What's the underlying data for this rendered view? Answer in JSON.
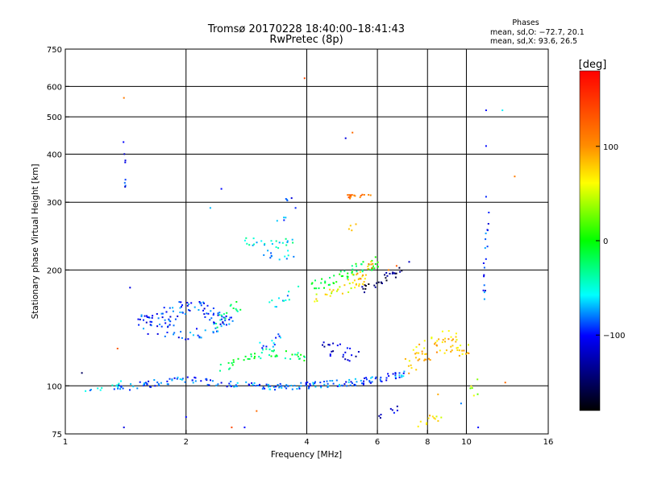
{
  "chart_data": {
    "type": "scatter",
    "title": "Tromsø 20170228 18:40:00–18:41:43",
    "subtitle": "RwPretec (8p)",
    "xlabel": "Frequency [MHz]",
    "ylabel": "Stationary phase Virtual Height [km]",
    "x_scale": "log",
    "y_scale": "log",
    "xlim": [
      1,
      16
    ],
    "ylim": [
      75,
      750
    ],
    "x_ticks": [
      1,
      2,
      4,
      6,
      8,
      10,
      16
    ],
    "x_tick_labels": [
      "1",
      "2",
      "4",
      "6",
      "8",
      "10",
      "16"
    ],
    "x_gridlines": [
      2,
      4,
      6,
      8,
      10
    ],
    "y_ticks": [
      75,
      100,
      200,
      300,
      400,
      500,
      600,
      750
    ],
    "y_tick_labels": [
      "75",
      "100",
      "200",
      "300",
      "400",
      "500",
      "600",
      "750"
    ],
    "y_gridlines": [
      100,
      200,
      300,
      400,
      500,
      600
    ],
    "info_heading": "Phases",
    "info_lines": [
      "mean, sd,O: −72.7, 20.1",
      "mean, sd,X:  93.6, 26.5"
    ],
    "colorbar": {
      "label": "[deg]",
      "range": [
        -180,
        180
      ],
      "ticks": [
        100,
        0,
        -100
      ],
      "tick_labels": [
        "100",
        "0",
        "−100"
      ],
      "colors": [
        "#ff0000",
        "#ff7f00",
        "#ffff00",
        "#00ff00",
        "#00ffff",
        "#0000ff",
        "#000000"
      ]
    },
    "traces": [
      {
        "f": [
          1.5,
          1.7,
          1.9,
          2.1,
          2.3,
          2.5
        ],
        "h": [
          145,
          150,
          157,
          162,
          155,
          148
        ],
        "phase": -95,
        "n": 16,
        "jitter": 0.05
      },
      {
        "f": [
          1.55,
          1.8,
          2.1,
          2.4,
          2.65
        ],
        "h": [
          142,
          140,
          137,
          140,
          150
        ],
        "phase": -90,
        "n": 12,
        "jitter": 0.045
      },
      {
        "f": [
          2.35,
          2.55,
          2.75
        ],
        "h": [
          145,
          155,
          162
        ],
        "phase": -30,
        "n": 8,
        "jitter": 0.04
      },
      {
        "f": [
          1.3,
          1.6,
          2.0,
          2.6,
          3.2,
          3.8,
          4.4,
          5.2,
          6.0,
          7.0
        ],
        "h": [
          98,
          101,
          104,
          101,
          99,
          100,
          101,
          102,
          104,
          107
        ],
        "phase": -85,
        "n": 22,
        "jitter": 0.02
      },
      {
        "f": [
          1.1,
          1.25,
          1.4
        ],
        "h": [
          95,
          98,
          100
        ],
        "phase": -60,
        "n": 6,
        "jitter": 0.03
      },
      {
        "f": [
          2.4,
          2.8,
          3.2,
          3.6,
          4.0
        ],
        "h": [
          110,
          118,
          122,
          120,
          118
        ],
        "phase": -20,
        "n": 12,
        "jitter": 0.025
      },
      {
        "f": [
          3.0,
          3.3,
          3.5
        ],
        "h": [
          125,
          130,
          135
        ],
        "phase": -80,
        "n": 6,
        "jitter": 0.03
      },
      {
        "f": [
          2.8,
          3.0,
          3.4,
          3.7
        ],
        "h": [
          240,
          235,
          232,
          242
        ],
        "phase": -50,
        "n": 8,
        "jitter": 0.025
      },
      {
        "f": [
          3.1,
          3.4,
          3.7
        ],
        "h": [
          222,
          218,
          220
        ],
        "phase": -70,
        "n": 6,
        "jitter": 0.025
      },
      {
        "f": [
          3.4,
          3.6
        ],
        "h": [
          268,
          270
        ],
        "phase": -85,
        "n": 4,
        "jitter": 0.02
      },
      {
        "f": [
          3.5,
          3.8
        ],
        "h": [
          302,
          305
        ],
        "phase": -90,
        "n": 4,
        "jitter": 0.02
      },
      {
        "f": [
          3.2,
          3.5,
          3.8
        ],
        "h": [
          160,
          168,
          178
        ],
        "phase": -60,
        "n": 6,
        "jitter": 0.035
      },
      {
        "f": [
          4.1,
          4.6,
          5.1,
          5.6,
          6.1
        ],
        "h": [
          180,
          190,
          198,
          205,
          210
        ],
        "phase": -10,
        "n": 14,
        "jitter": 0.035
      },
      {
        "f": [
          4.2,
          4.7,
          5.2,
          5.6
        ],
        "h": [
          168,
          175,
          182,
          190
        ],
        "phase": 60,
        "n": 10,
        "jitter": 0.03
      },
      {
        "f": [
          5.1,
          5.5,
          5.8
        ],
        "h": [
          185,
          195,
          205
        ],
        "phase": 90,
        "n": 10,
        "jitter": 0.04
      },
      {
        "f": [
          5.5,
          6.0,
          6.5,
          7.0
        ],
        "h": [
          175,
          185,
          195,
          200
        ],
        "phase": -150,
        "n": 10,
        "jitter": 0.03
      },
      {
        "f": [
          4.8,
          5.2,
          5.8
        ],
        "h": [
          308,
          309,
          310
        ],
        "phase": 120,
        "n": 8,
        "jitter": 0.015
      },
      {
        "f": [
          5.1,
          5.4
        ],
        "h": [
          250,
          270
        ],
        "phase": 95,
        "n": 4,
        "jitter": 0.04
      },
      {
        "f": [
          4.2,
          4.6,
          5.0,
          5.4
        ],
        "h": [
          130,
          125,
          120,
          118
        ],
        "phase": -120,
        "n": 8,
        "jitter": 0.05
      },
      {
        "f": [
          7.0,
          7.6,
          8.2,
          8.8,
          9.5,
          10.2
        ],
        "h": [
          110,
          120,
          125,
          130,
          128,
          120
        ],
        "phase": 80,
        "n": 14,
        "jitter": 0.07
      },
      {
        "f": [
          7.5,
          8.1,
          8.8
        ],
        "h": [
          80,
          82,
          84
        ],
        "phase": 70,
        "n": 6,
        "jitter": 0.03
      },
      {
        "f": [
          6.0,
          6.5,
          7.0
        ],
        "h": [
          82,
          85,
          88
        ],
        "phase": -110,
        "n": 4,
        "jitter": 0.03
      },
      {
        "f": [
          11.0,
          11.1,
          11.2,
          11.3
        ],
        "h": [
          160,
          190,
          230,
          280
        ],
        "phase": -95,
        "n": 6,
        "jitter": 0.06
      },
      {
        "f": [
          1.4,
          1.4,
          1.4
        ],
        "h": [
          340,
          380,
          450
        ],
        "phase": -100,
        "n": 4,
        "jitter": 0.04
      },
      {
        "f": [
          10.3,
          10.8
        ],
        "h": [
          95,
          100
        ],
        "phase": 40,
        "n": 6,
        "jitter": 0.06
      }
    ],
    "singles": [
      {
        "f": 1.4,
        "h": 560,
        "phase": 110
      },
      {
        "f": 3.95,
        "h": 630,
        "phase": 140
      },
      {
        "f": 5.2,
        "h": 455,
        "phase": 120
      },
      {
        "f": 5.0,
        "h": 440,
        "phase": -110
      },
      {
        "f": 11.2,
        "h": 520,
        "phase": -100
      },
      {
        "f": 12.3,
        "h": 520,
        "phase": -60
      },
      {
        "f": 11.2,
        "h": 420,
        "phase": -100
      },
      {
        "f": 11.2,
        "h": 310,
        "phase": -95
      },
      {
        "f": 13.2,
        "h": 350,
        "phase": 110
      },
      {
        "f": 2.45,
        "h": 325,
        "phase": -100
      },
      {
        "f": 2.3,
        "h": 290,
        "phase": -70
      },
      {
        "f": 1.1,
        "h": 108,
        "phase": -150
      },
      {
        "f": 1.45,
        "h": 180,
        "phase": -110
      },
      {
        "f": 1.35,
        "h": 125,
        "phase": 130
      },
      {
        "f": 1.4,
        "h": 78,
        "phase": -110
      },
      {
        "f": 2.0,
        "h": 83,
        "phase": -100
      },
      {
        "f": 2.6,
        "h": 78,
        "phase": 140
      },
      {
        "f": 2.8,
        "h": 78,
        "phase": -100
      },
      {
        "f": 3.0,
        "h": 86,
        "phase": 120
      },
      {
        "f": 12.5,
        "h": 102,
        "phase": 120
      },
      {
        "f": 10.7,
        "h": 78,
        "phase": -100
      },
      {
        "f": 9.7,
        "h": 90,
        "phase": -80
      },
      {
        "f": 8.5,
        "h": 95,
        "phase": 90
      },
      {
        "f": 7.2,
        "h": 210,
        "phase": -120
      },
      {
        "f": 6.4,
        "h": 200,
        "phase": 110
      },
      {
        "f": 6.7,
        "h": 205,
        "phase": 130
      },
      {
        "f": 3.75,
        "h": 290,
        "phase": -95
      }
    ]
  }
}
